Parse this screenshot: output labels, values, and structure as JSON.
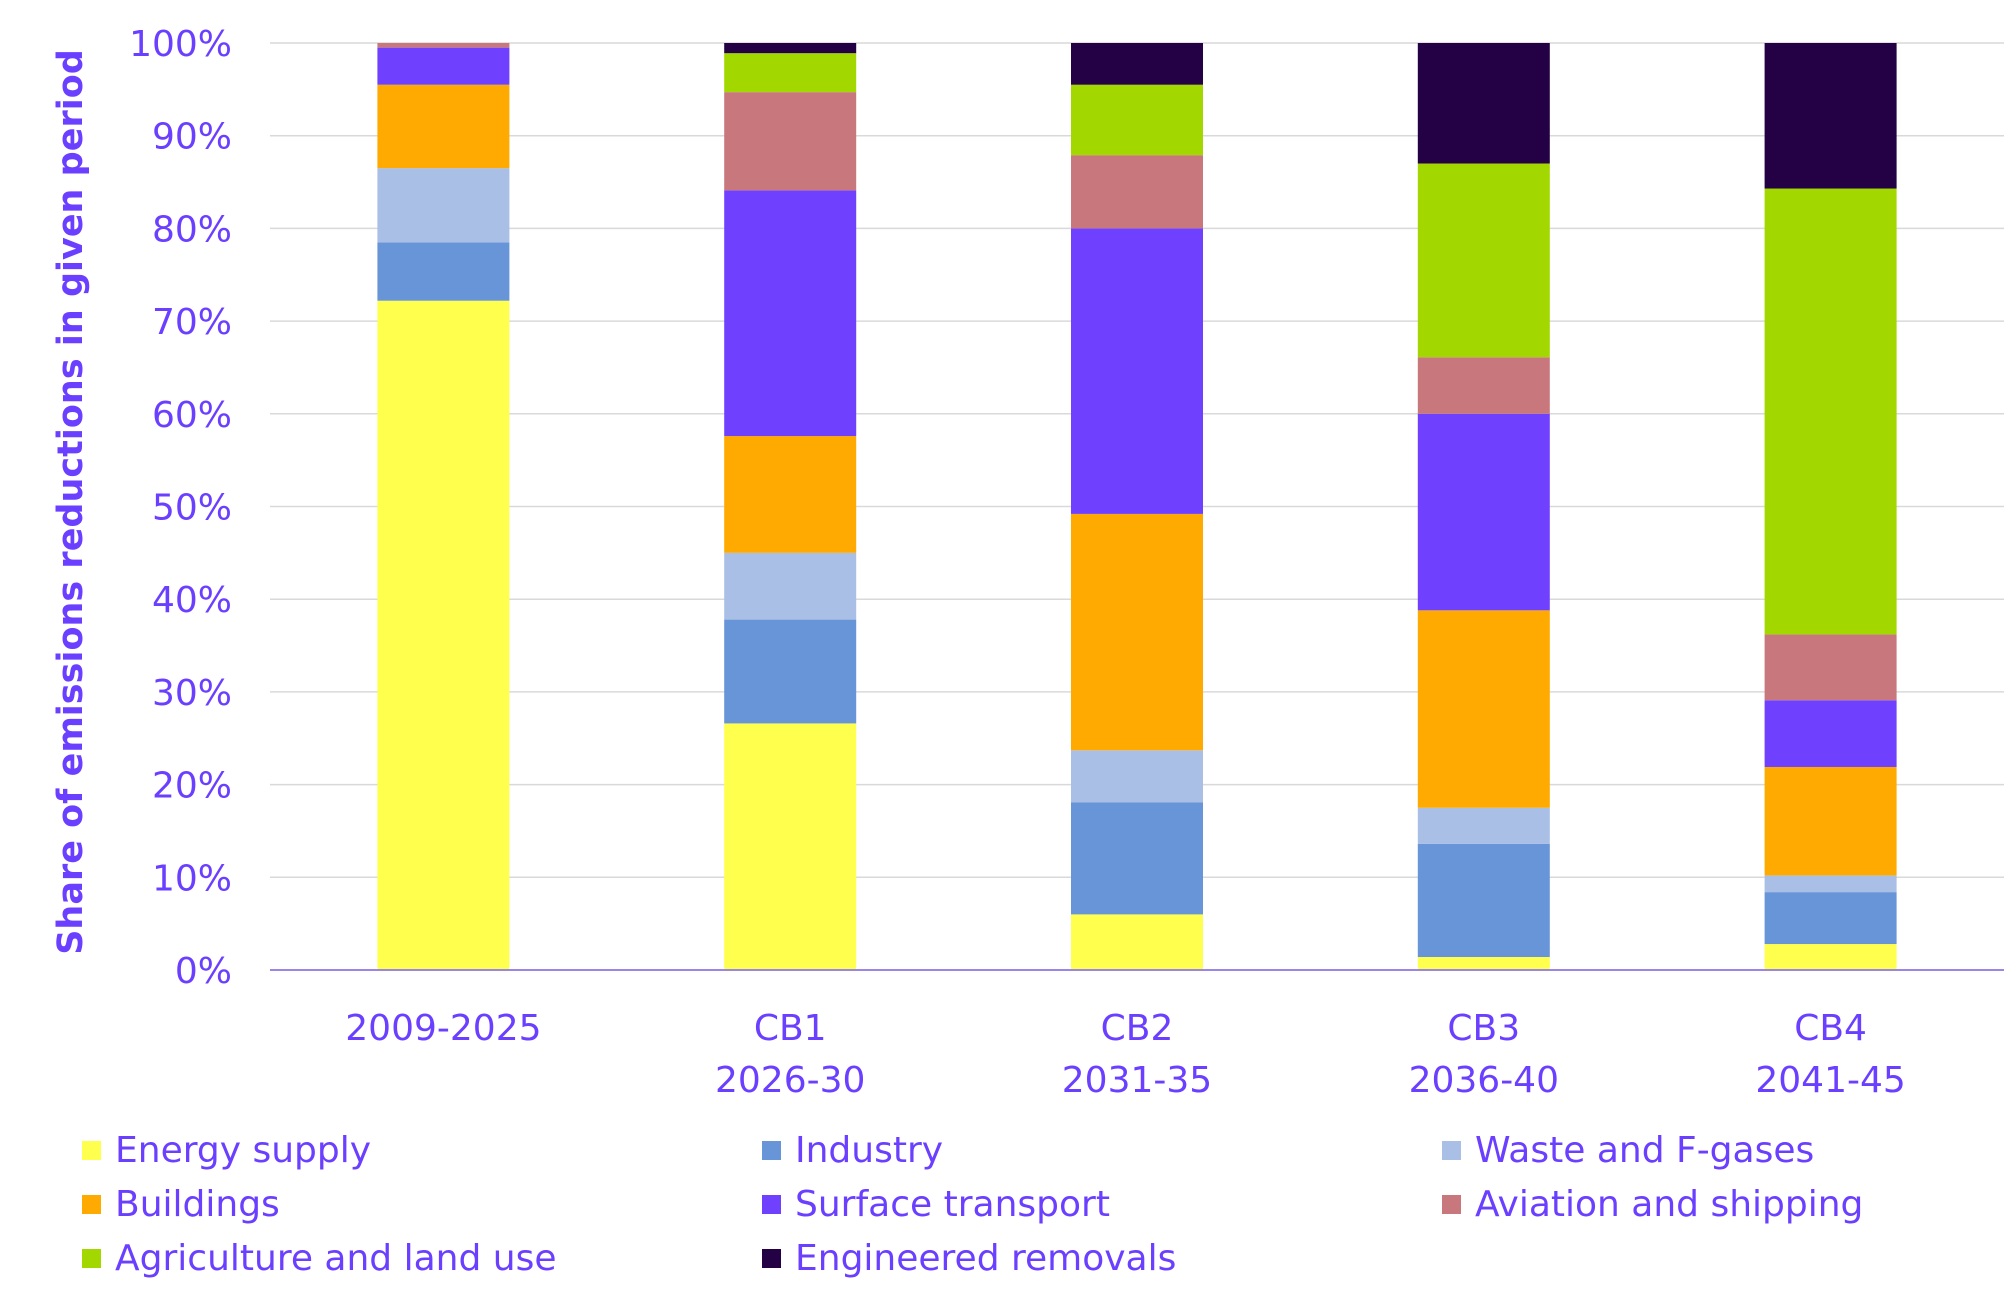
{
  "chart_data": {
    "type": "bar",
    "stacked": true,
    "title": "",
    "xlabel": "",
    "ylabel": "Share of emissions reductions in given period",
    "ylim": [
      0,
      100
    ],
    "y_ticks": [
      "0%",
      "10%",
      "20%",
      "30%",
      "40%",
      "50%",
      "60%",
      "70%",
      "80%",
      "90%",
      "100%"
    ],
    "grid": true,
    "legend_position": "bottom",
    "categories": [
      {
        "line1": "2009-2025",
        "line2": ""
      },
      {
        "line1": "CB1",
        "line2": "2026-30"
      },
      {
        "line1": "CB2",
        "line2": "2031-35"
      },
      {
        "line1": "CB3",
        "line2": "2036-40"
      },
      {
        "line1": "CB4",
        "line2": "2041-45"
      }
    ],
    "series": [
      {
        "name": "Energy supply",
        "color": "#FFFF4D",
        "values": [
          72.2,
          26.6,
          6.0,
          1.4,
          2.8
        ]
      },
      {
        "name": "Industry",
        "color": "#6895D8",
        "values": [
          6.3,
          11.2,
          12.1,
          12.2,
          5.6
        ]
      },
      {
        "name": "Waste and F-gases",
        "color": "#A9BFE6",
        "values": [
          8.0,
          7.2,
          5.6,
          3.9,
          1.8
        ]
      },
      {
        "name": "Buildings",
        "color": "#FFAA00",
        "values": [
          9.0,
          12.6,
          25.5,
          21.3,
          11.7
        ]
      },
      {
        "name": "Surface transport",
        "color": "#7040FF",
        "values": [
          4.0,
          26.5,
          30.8,
          21.2,
          7.2
        ]
      },
      {
        "name": "Aviation and shipping",
        "color": "#C8787C",
        "values": [
          0.5,
          10.6,
          7.9,
          6.1,
          7.1
        ]
      },
      {
        "name": "Agriculture and land use",
        "color": "#A2D800",
        "values": [
          0.0,
          4.2,
          7.6,
          20.9,
          48.1
        ]
      },
      {
        "name": "Engineered removals",
        "color": "#240045",
        "values": [
          0.0,
          1.1,
          4.5,
          13.0,
          15.7
        ]
      }
    ],
    "colors": {
      "text": "#6B3FFF",
      "grid": "#D9D9D9",
      "axis": "#9A86E8"
    }
  }
}
